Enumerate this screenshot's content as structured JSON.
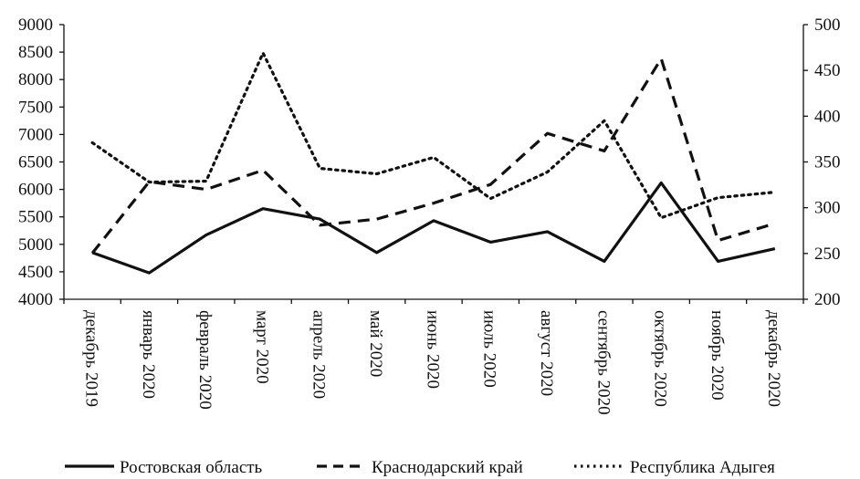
{
  "chart_data": {
    "type": "line",
    "categories": [
      "декабрь 2019",
      "январь 2020",
      "февраль 2020",
      "март 2020",
      "апрель 2020",
      "май 2020",
      "июнь 2020",
      "июль 2020",
      "август 2020",
      "сентябрь 2020",
      "октябрь 2020",
      "ноябрь 2020",
      "декабрь 2020"
    ],
    "y_left": {
      "ticks": [
        "4000",
        "4500",
        "5000",
        "5500",
        "6000",
        "6500",
        "7000",
        "7500",
        "8000",
        "8500",
        "9000"
      ],
      "ylim": [
        4000,
        9000
      ]
    },
    "y_right": {
      "ticks": [
        "200",
        "250",
        "300",
        "350",
        "400",
        "450",
        "500"
      ],
      "ylim": [
        200,
        500
      ]
    },
    "grid": false,
    "legend": "bottom",
    "series": [
      {
        "name": "Ростовская область",
        "axis": "left",
        "style": "solid",
        "color": "#111111",
        "values": [
          4850,
          4480,
          5170,
          5650,
          5460,
          4850,
          5430,
          5040,
          5230,
          4690,
          6120,
          4690,
          4920
        ]
      },
      {
        "name": "Краснодарский край",
        "axis": "left",
        "style": "dashed",
        "color": "#111111",
        "values": [
          4840,
          6140,
          6000,
          6350,
          5350,
          5460,
          5750,
          6090,
          7020,
          6700,
          8380,
          5070,
          5380
        ]
      },
      {
        "name": "Республика Адыгея",
        "axis": "right",
        "style": "dotted",
        "color": "#111111",
        "values": [
          371,
          328,
          329,
          469,
          343,
          337,
          355,
          310,
          339,
          395,
          289,
          311,
          317
        ]
      }
    ]
  }
}
